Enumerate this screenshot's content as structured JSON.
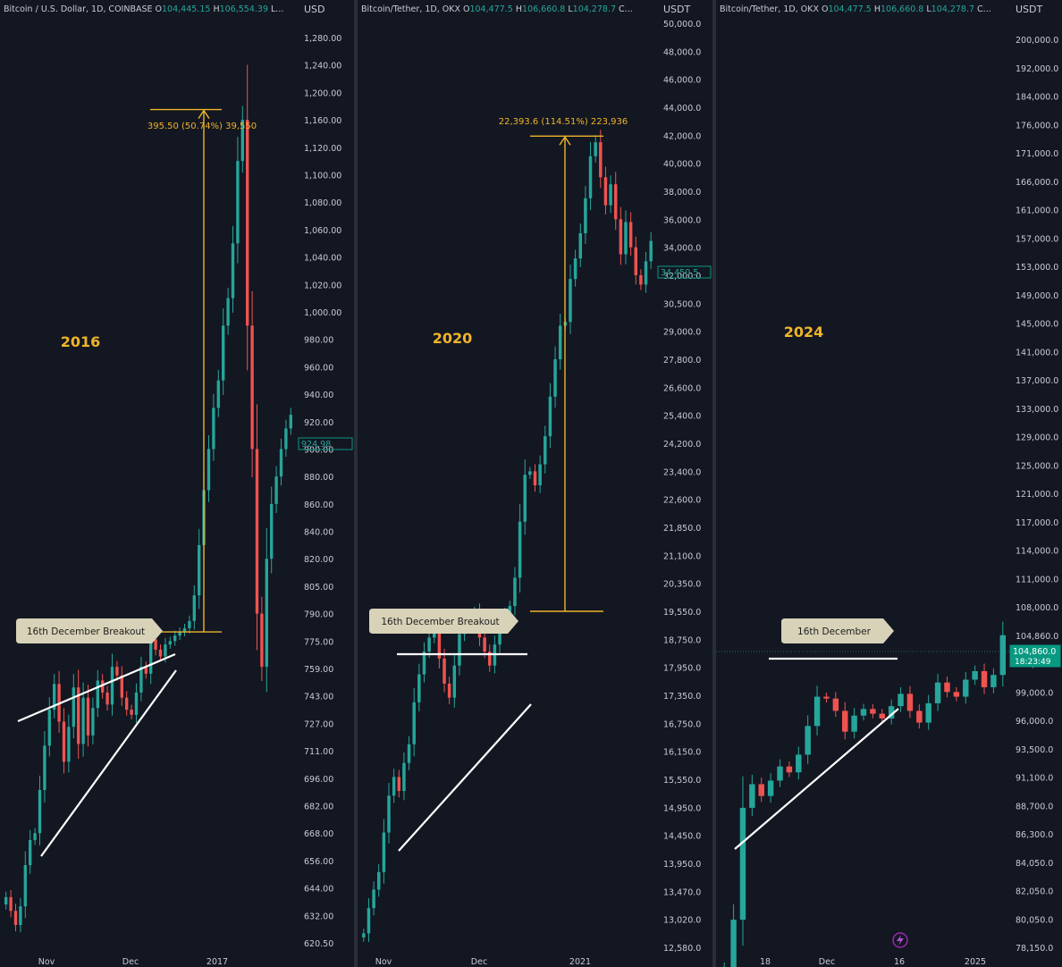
{
  "colors": {
    "bg": "#131722",
    "up": "#26a69a",
    "down": "#ef5350",
    "accent": "#f0b429",
    "trend": "#ffffff",
    "callout": "#d8d2b8",
    "axis_text": "#c9ccd4",
    "price_tag": "#089981"
  },
  "chart_data": [
    {
      "type": "candlestick",
      "header": {
        "symbol": "Bitcoin / U.S. Dollar, 1D, COINBASE",
        "o_label": "O",
        "o_value": "104,445.15",
        "h_label": "H",
        "h_value": "106,554.39",
        "l_label": "L..."
      },
      "currency": "USD",
      "year_label": "2016",
      "y_ticks": [
        "1,280.00",
        "1,240.00",
        "1,200.00",
        "1,160.00",
        "1,120.00",
        "1,100.00",
        "1,080.00",
        "1,060.00",
        "1,040.00",
        "1,020.00",
        "1,000.00",
        "980.00",
        "960.00",
        "940.00",
        "920.00",
        "900.00",
        "880.00",
        "860.00",
        "840.00",
        "820.00",
        "805.00",
        "790.00",
        "775.00",
        "759.00",
        "743.00",
        "727.00",
        "711.00",
        "696.00",
        "682.00",
        "668.00",
        "656.00",
        "644.00",
        "632.00",
        "620.50"
      ],
      "x_ticks": [
        "Nov",
        "Dec",
        "2017"
      ],
      "callout": "16th December Breakout",
      "measure_label": "395.50 (50.74%) 39,550",
      "measure": {
        "from": 780,
        "to": 1175,
        "change": 395.5,
        "percent": 50.74
      },
      "current_price": "924.98",
      "prices": [
        640,
        634,
        628,
        636,
        654,
        665,
        668,
        690,
        714,
        735,
        750,
        728,
        705,
        725,
        748,
        715,
        742,
        720,
        736,
        752,
        745,
        738,
        760,
        755,
        742,
        735,
        732,
        745,
        760,
        756,
        776,
        770,
        766,
        773,
        775,
        778,
        780,
        782,
        786,
        800,
        830,
        870,
        900,
        930,
        950,
        990,
        1010,
        1050,
        1110,
        1160,
        990,
        900,
        790,
        760,
        820,
        860,
        880,
        900,
        915,
        925
      ]
    },
    {
      "type": "candlestick",
      "header": {
        "symbol": "Bitcoin/Tether, 1D, OKX",
        "o_label": "O",
        "o_value": "104,477.5",
        "h_label": "H",
        "h_value": "106,660.8",
        "l_label": "L",
        "l_value": "104,278.7",
        "tail": "C..."
      },
      "currency": "USDT",
      "year_label": "2020",
      "y_ticks": [
        "50,000.0",
        "48,000.0",
        "46,000.0",
        "44,000.0",
        "42,000.0",
        "40,000.0",
        "38,000.0",
        "36,000.0",
        "34,000.0",
        "32,000.0",
        "30,500.0",
        "29,000.0",
        "27,800.0",
        "26,600.0",
        "25,400.0",
        "24,200.0",
        "23,400.0",
        "22,600.0",
        "21,850.0",
        "21,100.0",
        "20,350.0",
        "19,550.0",
        "18,750.0",
        "17,950.0",
        "17,350.0",
        "16,750.0",
        "16,150.0",
        "15,550.0",
        "14,950.0",
        "14,450.0",
        "13,950.0",
        "13,470.0",
        "13,020.0",
        "12,580.0"
      ],
      "x_ticks": [
        "Nov",
        "Dec",
        "2021"
      ],
      "callout": "16th December Breakout",
      "measure_label": "22,393.6 (114.51%) 223,936",
      "measure": {
        "from": 19550,
        "to": 41940,
        "change": 22393.6,
        "percent": 114.51
      },
      "current_price": "34,450.5",
      "prices": [
        12800,
        13200,
        13500,
        13800,
        14500,
        15200,
        15600,
        15300,
        15900,
        16300,
        17200,
        17800,
        18400,
        18800,
        19100,
        18200,
        17600,
        17300,
        18000,
        18900,
        19400,
        19200,
        19500,
        18800,
        18400,
        18000,
        18600,
        19300,
        19500,
        19700,
        20500,
        22000,
        23300,
        23400,
        23000,
        23600,
        24500,
        26200,
        27800,
        29300,
        29500,
        31800,
        33200,
        35000,
        37500,
        40500,
        41500,
        39000,
        37000,
        38500,
        36000,
        33500,
        35800,
        34000,
        32000,
        31500,
        33000,
        34450
      ]
    },
    {
      "type": "candlestick",
      "header": {
        "symbol": "Bitcoin/Tether, 1D, OKX",
        "o_label": "O",
        "o_value": "104,477.5",
        "h_label": "H",
        "h_value": "106,660.8",
        "l_label": "L",
        "l_value": "104,278.7",
        "tail": "C..."
      },
      "currency": "USDT",
      "year_label": "2024",
      "y_ticks": [
        "200,000.0",
        "192,000.0",
        "184,000.0",
        "176,000.0",
        "171,000.0",
        "166,000.0",
        "161,000.0",
        "157,000.0",
        "153,000.0",
        "149,000.0",
        "145,000.0",
        "141,000.0",
        "137,000.0",
        "133,000.0",
        "129,000.0",
        "125,000.0",
        "121,000.0",
        "117,000.0",
        "114,000.0",
        "111,000.0",
        "108,000.0",
        "104,860.0",
        "102,000.0",
        "99,000.0",
        "96,000.0",
        "93,500.0",
        "91,100.0",
        "88,700.0",
        "86,300.0",
        "84,050.0",
        "82,050.0",
        "80,050.0",
        "78,150.0"
      ],
      "x_ticks": [
        "18",
        "Dec",
        "16",
        "2025"
      ],
      "callout": "16th December",
      "current_price": "104,860.0",
      "countdown": "18:23:49",
      "prices": [
        76800,
        80000,
        88500,
        90500,
        89500,
        90800,
        92000,
        91500,
        93000,
        95500,
        98500,
        98300,
        97000,
        95000,
        96500,
        97200,
        96700,
        96200,
        97500,
        98800,
        97000,
        95800,
        97800,
        100000,
        99000,
        98500,
        100300,
        101200,
        99500,
        100800,
        104860
      ]
    }
  ]
}
